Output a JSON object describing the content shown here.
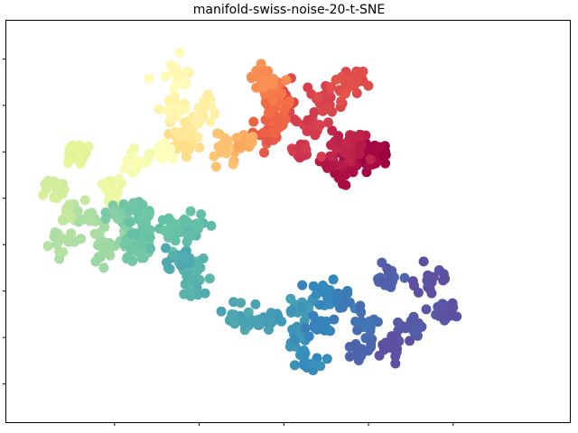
{
  "title": "manifold-swiss-noise-20-t-SNE",
  "chart_data": {
    "type": "scatter",
    "title": "manifold-swiss-noise-20-t-SNE",
    "xlabel": "",
    "ylabel": "",
    "tick_labels_shown": false,
    "grid": false,
    "legend": "none",
    "colormap": "Spectral",
    "color_stops": [
      "#9e0142",
      "#d53e4f",
      "#f46d43",
      "#fdae61",
      "#fee08b",
      "#ffffbf",
      "#e6f598",
      "#abdda4",
      "#66c2a5",
      "#3288bd",
      "#5e4fa2"
    ],
    "xlim": [
      -5.9,
      6.1
    ],
    "ylim": [
      -4.4,
      3.4
    ],
    "series": [
      {
        "points": [
          [
            2.2,
            1.0,
            0.0
          ],
          [
            2.0,
            0.9,
            0.01
          ],
          [
            1.4,
            0.6,
            0.02
          ],
          [
            1.15,
            0.77,
            0.04
          ],
          [
            1.7,
            1.15,
            0.05
          ],
          [
            1.4,
            1.1,
            0.06
          ],
          [
            0.4,
            1.05,
            0.09
          ],
          [
            0.6,
            1.6,
            0.1
          ],
          [
            1.0,
            2.1,
            0.11
          ],
          [
            0.0,
            2.2,
            0.12
          ],
          [
            1.7,
            2.6,
            0.13
          ],
          [
            1.4,
            2.4,
            0.14
          ],
          [
            -0.4,
            1.35,
            0.16
          ],
          [
            -0.35,
            1.65,
            0.18
          ],
          [
            -0.2,
            2.0,
            0.2
          ],
          [
            -0.35,
            2.3,
            0.22
          ],
          [
            -0.5,
            2.6,
            0.25
          ],
          [
            -1.0,
            1.2,
            0.3
          ],
          [
            -1.5,
            1.1,
            0.34
          ],
          [
            -2.4,
            1.2,
            0.4
          ],
          [
            -2.2,
            1.5,
            0.43
          ],
          [
            -1.9,
            1.9,
            0.45
          ],
          [
            -2.6,
            2.0,
            0.47
          ],
          [
            -2.5,
            2.7,
            0.48
          ],
          [
            -2.9,
            1.0,
            0.51
          ],
          [
            -3.6,
            0.8,
            0.54
          ],
          [
            -4.1,
            0.2,
            0.57
          ],
          [
            -4.9,
            0.9,
            0.6
          ],
          [
            -5.4,
            0.2,
            0.63
          ],
          [
            -5.0,
            -0.3,
            0.66
          ],
          [
            -5.3,
            -0.9,
            0.69
          ],
          [
            -4.6,
            -0.4,
            0.7
          ],
          [
            -4.2,
            -1.1,
            0.72
          ],
          [
            -3.7,
            -0.9,
            0.74
          ],
          [
            -3.9,
            -0.4,
            0.76
          ],
          [
            -3.5,
            -1.1,
            0.78
          ],
          [
            -3.4,
            -0.3,
            0.79
          ],
          [
            -3.3,
            -0.8,
            0.8
          ],
          [
            -2.6,
            -0.7,
            0.8
          ],
          [
            -2.1,
            -0.6,
            0.81
          ],
          [
            -2.2,
            -1.4,
            0.82
          ],
          [
            -2.1,
            -1.8,
            0.83
          ],
          [
            -2.5,
            -1.3,
            0.84
          ],
          [
            -1.2,
            -2.6,
            0.85
          ],
          [
            -0.4,
            -2.6,
            0.86
          ],
          [
            0.4,
            -2.4,
            0.87
          ],
          [
            0.3,
            -3.0,
            0.88
          ],
          [
            0.6,
            -3.5,
            0.89
          ],
          [
            1.0,
            -2.0,
            0.9
          ],
          [
            0.8,
            -2.8,
            0.91
          ],
          [
            1.4,
            -2.2,
            0.92
          ],
          [
            1.9,
            -2.7,
            0.94
          ],
          [
            1.8,
            -3.3,
            0.96
          ],
          [
            2.5,
            -1.7,
            0.97
          ],
          [
            3.1,
            -2.8,
            0.98
          ],
          [
            3.8,
            -2.4,
            0.99
          ],
          [
            3.5,
            -1.7,
            1.0
          ],
          [
            2.6,
            -3.2,
            1.0
          ]
        ]
      }
    ]
  }
}
